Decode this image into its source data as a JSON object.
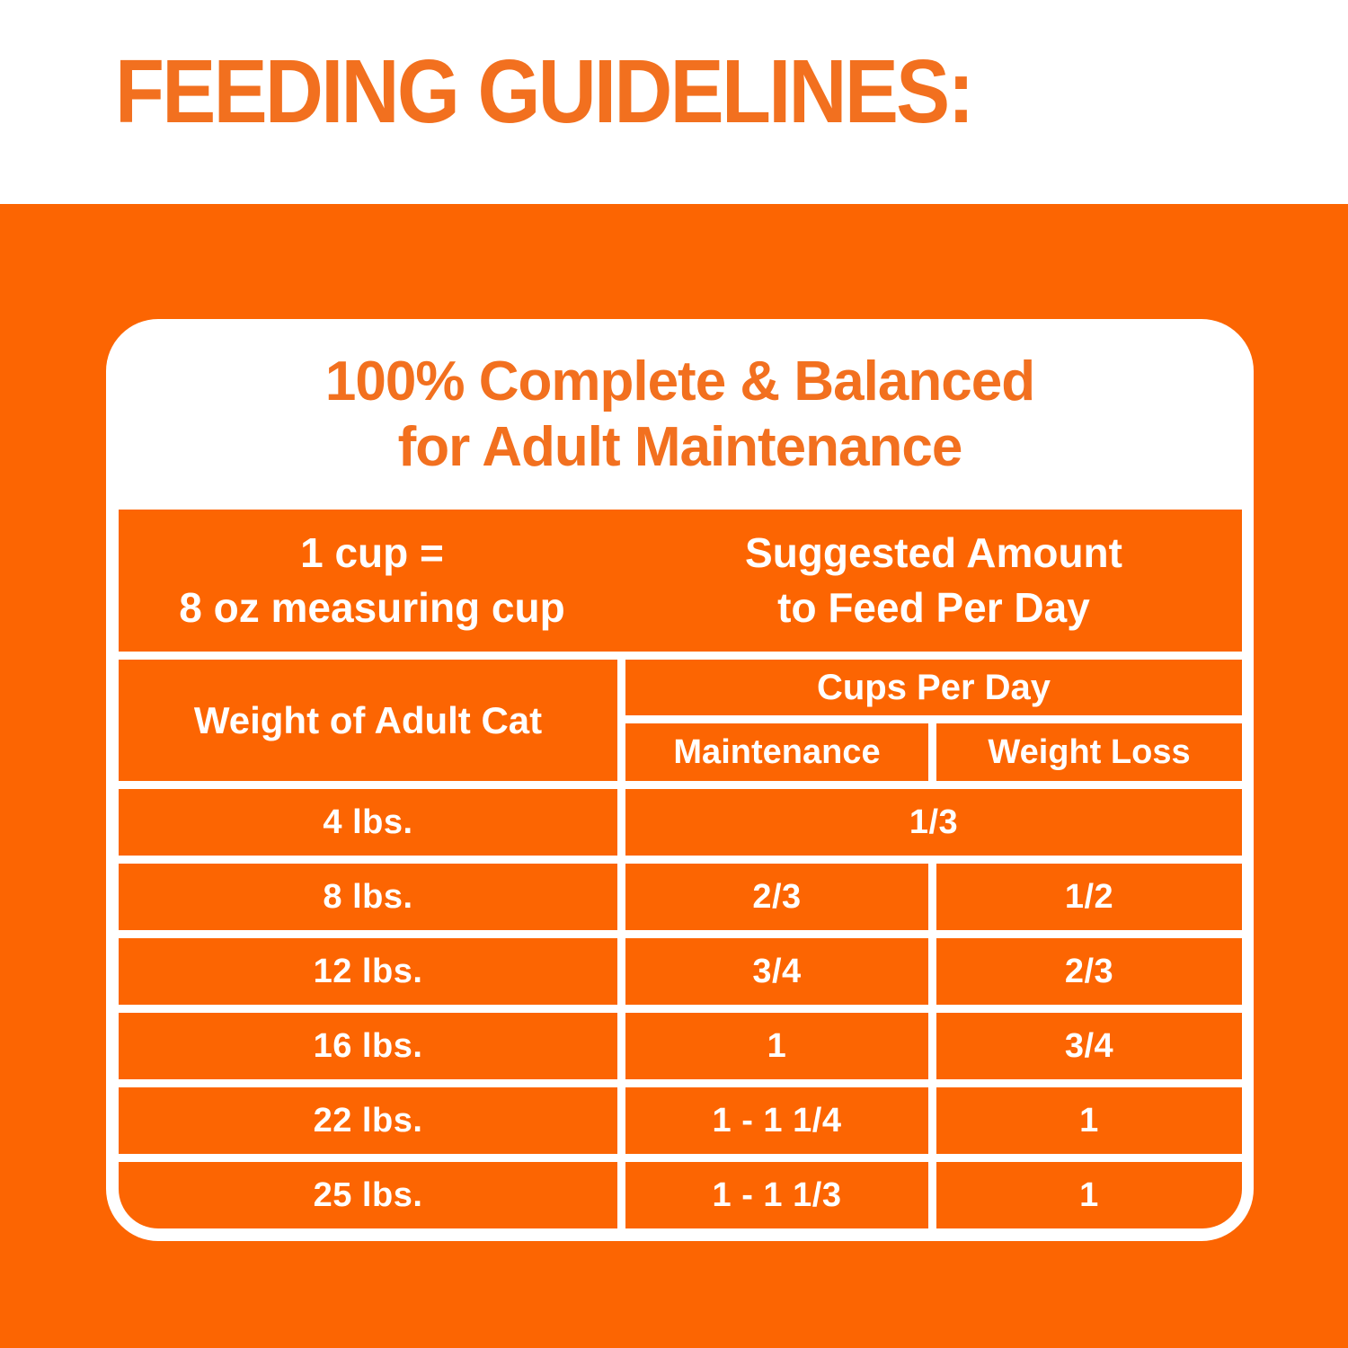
{
  "colors": {
    "orange_bg": "#FC6502",
    "orange_text": "#F2701F",
    "table_text": "#FFFFFF"
  },
  "page_title": "FEEDING GUIDELINES:",
  "card": {
    "heading_line1": "100% Complete & Balanced",
    "heading_line2": "for Adult Maintenance",
    "table": {
      "header": {
        "cup_note_line1": "1 cup =",
        "cup_note_line2": "8 oz measuring cup",
        "suggested_line1": "Suggested Amount",
        "suggested_line2": "to Feed Per Day"
      },
      "columns": {
        "weight": "Weight of Adult Cat",
        "cups_group": "Cups Per Day",
        "maintenance": "Maintenance",
        "weight_loss": "Weight Loss"
      },
      "rows": [
        {
          "weight": "4 lbs.",
          "both": "1/3"
        },
        {
          "weight": "8 lbs.",
          "maintenance": "2/3",
          "weight_loss": "1/2"
        },
        {
          "weight": "12 lbs.",
          "maintenance": "3/4",
          "weight_loss": "2/3"
        },
        {
          "weight": "16 lbs.",
          "maintenance": "1",
          "weight_loss": "3/4"
        },
        {
          "weight": "22 lbs.",
          "maintenance": "1 - 1 1/4",
          "weight_loss": "1"
        },
        {
          "weight": "25 lbs.",
          "maintenance": "1 - 1 1/3",
          "weight_loss": "1"
        }
      ]
    }
  }
}
